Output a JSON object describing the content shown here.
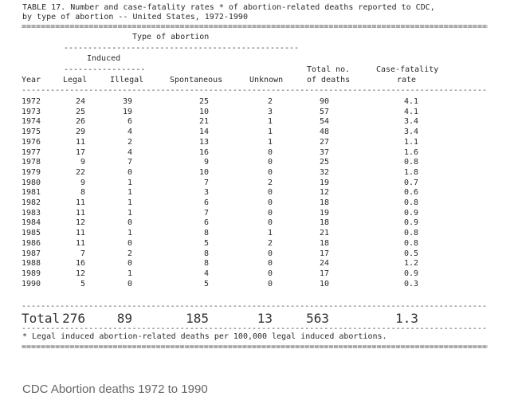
{
  "title_line1": "TABLE 17. Number and case-fatality rates * of abortion-related deaths reported to CDC,",
  "title_line2": "by type of abortion -- United States, 1972-1990",
  "group_header": "Type of abortion",
  "induced_header": "Induced",
  "columns": [
    "Year",
    "Legal",
    "Illegal",
    "Spontaneous",
    "Unknown",
    "Total no.",
    "of deaths",
    "Case-fatality",
    "rate"
  ],
  "rows": [
    [
      "1972",
      "24",
      "39",
      "25",
      "2",
      "90",
      "4.1"
    ],
    [
      "1973",
      "25",
      "19",
      "10",
      "3",
      "57",
      "4.1"
    ],
    [
      "1974",
      "26",
      "6",
      "21",
      "1",
      "54",
      "3.4"
    ],
    [
      "1975",
      "29",
      "4",
      "14",
      "1",
      "48",
      "3.4"
    ],
    [
      "1976",
      "11",
      "2",
      "13",
      "1",
      "27",
      "1.1"
    ],
    [
      "1977",
      "17",
      "4",
      "16",
      "0",
      "37",
      "1.6"
    ],
    [
      "1978",
      "9",
      "7",
      "9",
      "0",
      "25",
      "0.8"
    ],
    [
      "1979",
      "22",
      "0",
      "10",
      "0",
      "32",
      "1.8"
    ],
    [
      "1980",
      "9",
      "1",
      "7",
      "2",
      "19",
      "0.7"
    ],
    [
      "1981",
      "8",
      "1",
      "3",
      "0",
      "12",
      "0.6"
    ],
    [
      "1982",
      "11",
      "1",
      "6",
      "0",
      "18",
      "0.8"
    ],
    [
      "1983",
      "11",
      "1",
      "7",
      "0",
      "19",
      "0.9"
    ],
    [
      "1984",
      "12",
      "0",
      "6",
      "0",
      "18",
      "0.9"
    ],
    [
      "1985",
      "11",
      "1",
      "8",
      "1",
      "21",
      "0.8"
    ],
    [
      "1986",
      "11",
      "0",
      "5",
      "2",
      "18",
      "0.8"
    ],
    [
      "1987",
      "7",
      "2",
      "8",
      "0",
      "17",
      "0.5"
    ],
    [
      "1988",
      "16",
      "0",
      "8",
      "0",
      "24",
      "1.2"
    ],
    [
      "1989",
      "12",
      "1",
      "4",
      "0",
      "17",
      "0.9"
    ],
    [
      "1990",
      "5",
      "0",
      "5",
      "0",
      "10",
      "0.3"
    ]
  ],
  "total_row": [
    "Total",
    "276",
    "89",
    "185",
    "13",
    "563",
    "1.3"
  ],
  "footnote": "* Legal induced abortion-related deaths per 100,000 legal induced abortions.",
  "caption": "CDC Abortion deaths 1972 to 1990"
}
